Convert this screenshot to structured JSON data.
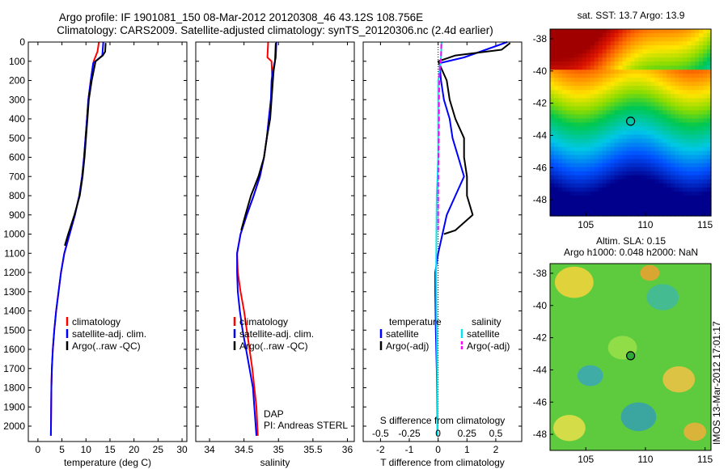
{
  "header": {
    "line1": "Argo profile: IF 1901081_150 08-Mar-2012 20120308_46 43.12S 108.756E",
    "line2": "Climatology: CARS2009. Satellite-adjusted climatology: synTS_20120306.nc (2.4d earlier)"
  },
  "footer": {
    "stamp": "IMOS 13-Mar-2012 17:01:17",
    "dap": "DAP",
    "pi": "PI: Andreas STERL"
  },
  "colors": {
    "climatology": "#ff0000",
    "satellite": "#0000ff",
    "argo": "#000000",
    "salinity_satellite": "#00e5ee",
    "salinity_argo": "#ff00ff"
  },
  "chart_data": [
    {
      "type": "line",
      "xlabel": "temperature (deg C)",
      "ylabel": "",
      "xlim": [
        -2,
        31
      ],
      "ylim": [
        2080,
        0
      ],
      "xticks": [
        "0",
        "5",
        "10",
        "15",
        "20",
        "25",
        "30"
      ],
      "yticks": [
        "0",
        "100",
        "200",
        "300",
        "400",
        "500",
        "600",
        "700",
        "800",
        "900",
        "1000",
        "1100",
        "1200",
        "1300",
        "1400",
        "1500",
        "1600",
        "1700",
        "1800",
        "1900",
        "2000"
      ],
      "legend": [
        "climatology",
        "satellite-adj. clim.",
        "Argo(..raw -QC)"
      ],
      "legend_placement": "lower-right",
      "series": [
        {
          "name": "climatology",
          "x": [
            12.7,
            12.4,
            11.6,
            11.0,
            10.5,
            10.2,
            9.9,
            9.6,
            9.2,
            8.6,
            7.7,
            6.6,
            5.5,
            4.8,
            4.3,
            3.8,
            3.4,
            3.1,
            2.9,
            2.8,
            2.7
          ],
          "y": [
            0,
            50,
            100,
            200,
            300,
            400,
            500,
            600,
            700,
            800,
            900,
            1000,
            1100,
            1200,
            1300,
            1400,
            1500,
            1600,
            1700,
            1800,
            2050
          ]
        },
        {
          "name": "satellite-adj. clim.",
          "x": [
            13.6,
            13.4,
            11.5,
            11.0,
            10.5,
            10.2,
            9.9,
            9.6,
            9.2,
            8.6,
            7.7,
            6.6,
            5.5,
            4.8,
            4.3,
            3.8,
            3.4,
            3.1,
            2.9,
            2.8,
            2.7
          ],
          "y": [
            0,
            70,
            110,
            200,
            300,
            400,
            500,
            600,
            700,
            800,
            900,
            1000,
            1100,
            1200,
            1300,
            1400,
            1500,
            1600,
            1700,
            1800,
            2050
          ]
        },
        {
          "name": "Argo(..raw -QC)",
          "x": [
            14.1,
            14.0,
            13.5,
            12.0,
            11.2,
            10.6,
            10.3,
            10.0,
            9.7,
            9.3,
            8.7,
            7.6,
            6.3,
            5.6
          ],
          "y": [
            5,
            50,
            70,
            100,
            200,
            300,
            400,
            500,
            600,
            700,
            800,
            900,
            1000,
            1060
          ]
        }
      ]
    },
    {
      "type": "line",
      "xlabel": "salinity",
      "ylabel": "",
      "xlim": [
        33.8,
        36.1
      ],
      "ylim": [
        2080,
        0
      ],
      "xticks": [
        "34",
        "34.5",
        "35",
        "35.5",
        "36"
      ],
      "legend": [
        "climatology",
        "satellite-adj. clim.",
        "Argo(..raw -QC)"
      ],
      "legend_placement": "lower-right",
      "series": [
        {
          "name": "climatology",
          "x": [
            34.85,
            34.84,
            34.9,
            34.91,
            34.89,
            34.86,
            34.83,
            34.79,
            34.73,
            34.64,
            34.54,
            34.45,
            34.4,
            34.41,
            34.45,
            34.5,
            34.54,
            34.58,
            34.62,
            34.65,
            34.68,
            34.7
          ],
          "y": [
            0,
            80,
            100,
            200,
            300,
            400,
            500,
            600,
            700,
            800,
            900,
            1000,
            1100,
            1200,
            1300,
            1400,
            1500,
            1600,
            1700,
            1800,
            1900,
            2050
          ]
        },
        {
          "name": "satellite-adj. clim.",
          "x": [
            34.97,
            34.96,
            34.92,
            34.9,
            34.89,
            34.86,
            34.83,
            34.79,
            34.73,
            34.64,
            34.54,
            34.45,
            34.4,
            34.4,
            34.41,
            34.44,
            34.48,
            34.53,
            34.58,
            34.63,
            34.68
          ],
          "y": [
            0,
            80,
            150,
            200,
            300,
            400,
            500,
            600,
            700,
            800,
            900,
            1000,
            1100,
            1200,
            1300,
            1400,
            1500,
            1600,
            1700,
            1800,
            2050
          ]
        },
        {
          "name": "Argo(..raw -QC)",
          "x": [
            34.96,
            34.95,
            34.93,
            34.92,
            34.9,
            34.88,
            34.83,
            34.79,
            34.71,
            34.6,
            34.52,
            34.46
          ],
          "y": [
            5,
            100,
            150,
            200,
            300,
            400,
            500,
            600,
            700,
            800,
            900,
            980
          ]
        }
      ]
    },
    {
      "type": "line",
      "xlabel": "T difference from climatology",
      "xlabel2": "S difference from climatology",
      "xlim": [
        -2.6,
        2.9
      ],
      "xticks": [
        "-2",
        "-1",
        "0",
        "1",
        "2"
      ],
      "xticks2": [
        "-0.5",
        "-0.25",
        "0",
        "0.25",
        "0.5"
      ],
      "ylim": [
        2080,
        0
      ],
      "legend_left_title": "temperature",
      "legend_right_title": "salinity",
      "legend_left": [
        "satellite",
        "Argo(-adj)"
      ],
      "legend_right": [
        "satellite",
        "Argo(-adj)"
      ],
      "legend_placement": "lower-center",
      "series": [
        {
          "name": "temperature satellite",
          "x": [
            2.4,
            0.9,
            0.05,
            0.1,
            0.2,
            0.4,
            0.5,
            0.7,
            0.9,
            0.6,
            0.3,
            0.15,
            0.0,
            -0.1,
            -0.1,
            -0.08,
            -0.05,
            -0.03,
            -0.02
          ],
          "y": [
            0,
            80,
            110,
            200,
            300,
            400,
            500,
            600,
            700,
            800,
            900,
            1000,
            1100,
            1200,
            1300,
            1500,
            1700,
            1900,
            2050
          ]
        },
        {
          "name": "temperature Argo(-adj)",
          "x": [
            2.5,
            2.2,
            0.6,
            0.2,
            0.0,
            0.3,
            0.4,
            0.6,
            0.9,
            0.9,
            1.0,
            1.0,
            1.2,
            0.6,
            0.2
          ],
          "y": [
            5,
            40,
            70,
            90,
            100,
            200,
            300,
            400,
            500,
            600,
            700,
            800,
            900,
            980,
            1000
          ]
        },
        {
          "name": "salinity satellite",
          "x": [
            0.12,
            0.1,
            0.05,
            0.0,
            0.0,
            0.0,
            0.0,
            0.0,
            -0.02,
            -0.05,
            -0.06,
            -0.07,
            -0.06,
            -0.05,
            -0.04,
            -0.03,
            -0.02,
            -0.02
          ],
          "y": [
            0,
            80,
            150,
            200,
            300,
            400,
            500,
            600,
            700,
            800,
            1000,
            1200,
            1400,
            1500,
            1600,
            1800,
            1900,
            2050
          ]
        },
        {
          "name": "salinity Argo(-adj)",
          "x": [
            0.11,
            0.1,
            0.05,
            0.03,
            0.03,
            0.02,
            0.01,
            0.0,
            0.0,
            0.0
          ],
          "y": [
            10,
            80,
            150,
            300,
            400,
            500,
            600,
            800,
            900,
            980
          ]
        }
      ]
    },
    {
      "type": "heatmap",
      "title": "sat. SST: 13.7 Argo: 13.9",
      "xlim": [
        102,
        115.5
      ],
      "ylim": [
        -49,
        -37.4
      ],
      "xticks": [
        "105",
        "110",
        "115"
      ],
      "yticks": [
        "-38",
        "-40",
        "-42",
        "-44",
        "-46",
        "-48"
      ],
      "marker": {
        "lon": 108.756,
        "lat": -43.12
      }
    },
    {
      "type": "heatmap",
      "title": "Altim. SLA: 0.15",
      "subtitle": "Argo h1000: 0.048 h2000: NaN",
      "xlim": [
        102,
        115.5
      ],
      "ylim": [
        -49,
        -37.4
      ],
      "xticks": [
        "105",
        "110",
        "115"
      ],
      "yticks": [
        "-38",
        "-40",
        "-42",
        "-44",
        "-46",
        "-48"
      ],
      "marker": {
        "lon": 108.756,
        "lat": -43.12
      }
    }
  ]
}
